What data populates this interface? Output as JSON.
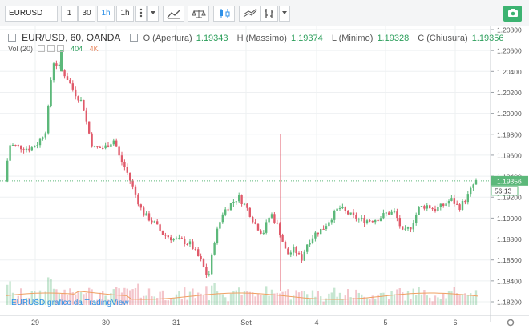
{
  "toolbar": {
    "symbol": "EURUSD",
    "interval_buttons": [
      "1",
      "30",
      "1h",
      "1h"
    ],
    "active_interval_index": 2
  },
  "legend": {
    "symbol": "EUR/USD, 60, OANDA",
    "open_label": "O (Apertura)",
    "open_value": "1.19343",
    "high_label": "H (Massimo)",
    "high_value": "1.19374",
    "low_label": "L (Minimo)",
    "low_value": "1.19328",
    "close_label": "C (Chiusura)",
    "close_value": "1.19356"
  },
  "volume_legend": {
    "label": "Vol (20)",
    "value_1": "404",
    "value_2": "4K"
  },
  "price_axis": {
    "ticks": [
      "1.20800",
      "1.20600",
      "1.20400",
      "1.20200",
      "1.20000",
      "1.19800",
      "1.19600",
      "1.19400",
      "1.19200",
      "1.19000",
      "1.18800",
      "1.18600",
      "1.18400",
      "1.18200"
    ],
    "last_price": "1.19356",
    "countdown": "56:13"
  },
  "time_axis": {
    "labels": [
      "29",
      "30",
      "31",
      "Set",
      "4",
      "5",
      "6"
    ]
  },
  "watermark": "EURUSD grafico da TradingView",
  "colors": {
    "up": "#5cb87a",
    "down": "#e05a6a",
    "accent": "#2e91e8",
    "camera": "#3cb371"
  }
}
